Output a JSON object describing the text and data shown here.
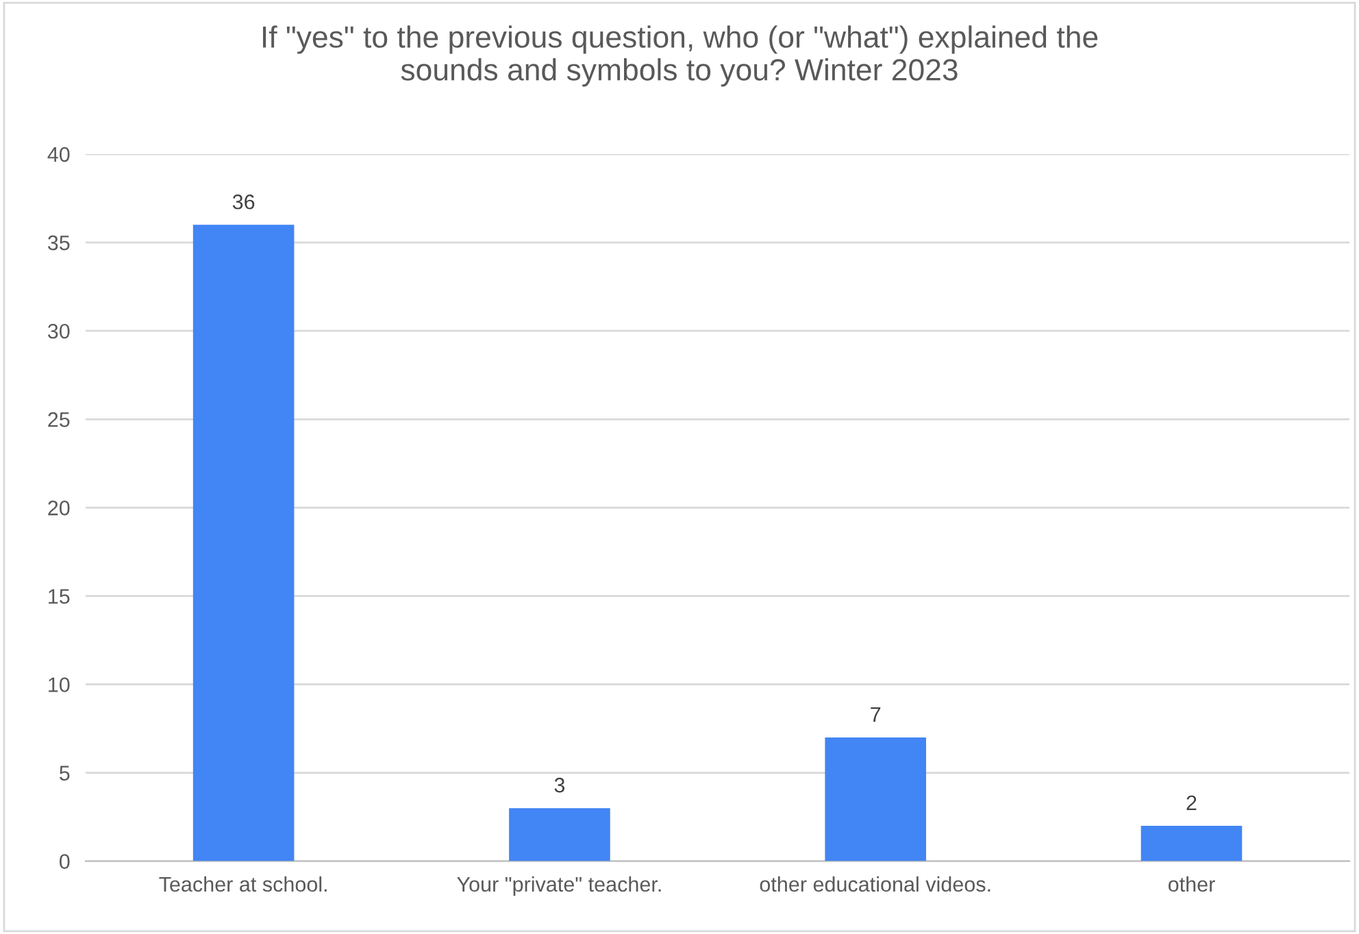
{
  "chart_data": {
    "type": "bar",
    "title": "If \"yes\" to the previous question, who (or \"what\") explained the\nsounds and symbols to you? Winter 2023",
    "categories": [
      "Teacher at school.",
      "Your \"private\" teacher.",
      "other educational videos.",
      "other"
    ],
    "values": [
      36,
      3,
      7,
      2
    ],
    "color": "#4285f4",
    "ylim": [
      0,
      40
    ],
    "yticks": [
      0,
      5,
      10,
      15,
      20,
      25,
      30,
      35,
      40
    ],
    "grid": "y",
    "data_labels": true,
    "legend": false
  }
}
